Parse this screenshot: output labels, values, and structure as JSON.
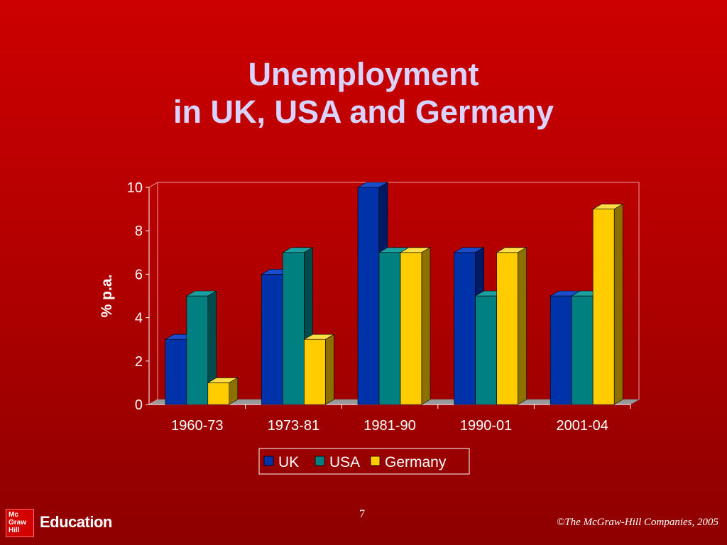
{
  "slide": {
    "title_line1": "Unemployment",
    "title_line2": "in UK, USA and Germany",
    "page_number": "7",
    "copyright": "©The McGraw-Hill Companies, 2005",
    "logo_lines": [
      "Mc",
      "Graw",
      "Hill"
    ],
    "logo_text": "Education"
  },
  "chart_data": {
    "type": "bar",
    "categories": [
      "1960-73",
      "1973-81",
      "1981-90",
      "1990-01",
      "2001-04"
    ],
    "series": [
      {
        "name": "UK",
        "values": [
          3,
          6,
          10,
          7,
          5
        ],
        "color": "#0033aa",
        "side": "#001a66",
        "top": "#1a4dcc"
      },
      {
        "name": "USA",
        "values": [
          5,
          7,
          7,
          5,
          5
        ],
        "color": "#008080",
        "side": "#004c4c",
        "top": "#1aa0a0"
      },
      {
        "name": "Germany",
        "values": [
          1,
          3,
          7,
          7,
          9
        ],
        "color": "#ffcc00",
        "side": "#8c7000",
        "top": "#ffdd44"
      }
    ],
    "ylabel": "% p.a.",
    "xlabel": "",
    "ylim": [
      0,
      10
    ],
    "yticks": [
      "0",
      "2",
      "4",
      "6",
      "8",
      "10"
    ],
    "legend_position": "bottom"
  }
}
